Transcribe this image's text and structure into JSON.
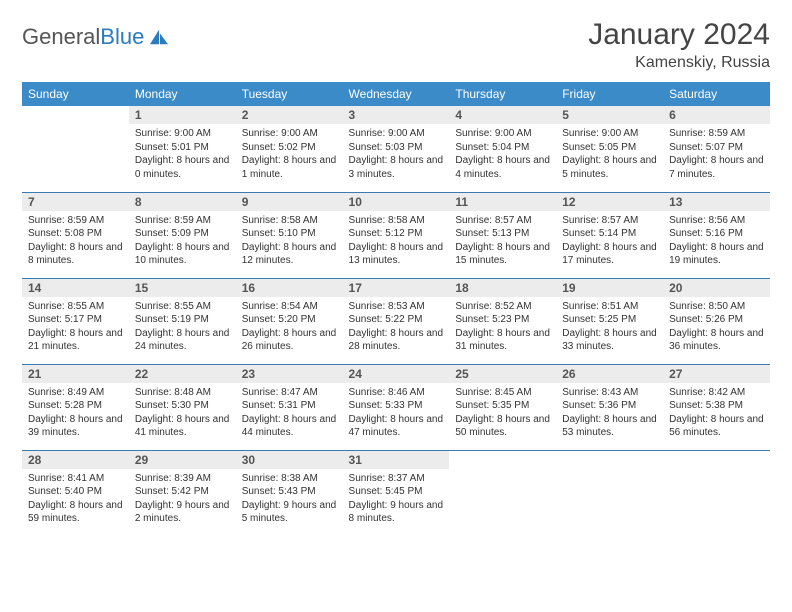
{
  "brand": {
    "part1": "General",
    "part2": "Blue"
  },
  "title": "January 2024",
  "location": "Kamenskiy, Russia",
  "colors": {
    "header_bg": "#3b8bc9",
    "header_text": "#ffffff",
    "daynum_bg": "#ececec",
    "rule": "#3b7bb5",
    "brand_blue": "#2b7bbf",
    "text": "#333333",
    "page_bg": "#ffffff"
  },
  "weekdays": [
    "Sunday",
    "Monday",
    "Tuesday",
    "Wednesday",
    "Thursday",
    "Friday",
    "Saturday"
  ],
  "weeks": [
    [
      null,
      {
        "n": "1",
        "sr": "9:00 AM",
        "ss": "5:01 PM",
        "dl": "8 hours and 0 minutes."
      },
      {
        "n": "2",
        "sr": "9:00 AM",
        "ss": "5:02 PM",
        "dl": "8 hours and 1 minute."
      },
      {
        "n": "3",
        "sr": "9:00 AM",
        "ss": "5:03 PM",
        "dl": "8 hours and 3 minutes."
      },
      {
        "n": "4",
        "sr": "9:00 AM",
        "ss": "5:04 PM",
        "dl": "8 hours and 4 minutes."
      },
      {
        "n": "5",
        "sr": "9:00 AM",
        "ss": "5:05 PM",
        "dl": "8 hours and 5 minutes."
      },
      {
        "n": "6",
        "sr": "8:59 AM",
        "ss": "5:07 PM",
        "dl": "8 hours and 7 minutes."
      }
    ],
    [
      {
        "n": "7",
        "sr": "8:59 AM",
        "ss": "5:08 PM",
        "dl": "8 hours and 8 minutes."
      },
      {
        "n": "8",
        "sr": "8:59 AM",
        "ss": "5:09 PM",
        "dl": "8 hours and 10 minutes."
      },
      {
        "n": "9",
        "sr": "8:58 AM",
        "ss": "5:10 PM",
        "dl": "8 hours and 12 minutes."
      },
      {
        "n": "10",
        "sr": "8:58 AM",
        "ss": "5:12 PM",
        "dl": "8 hours and 13 minutes."
      },
      {
        "n": "11",
        "sr": "8:57 AM",
        "ss": "5:13 PM",
        "dl": "8 hours and 15 minutes."
      },
      {
        "n": "12",
        "sr": "8:57 AM",
        "ss": "5:14 PM",
        "dl": "8 hours and 17 minutes."
      },
      {
        "n": "13",
        "sr": "8:56 AM",
        "ss": "5:16 PM",
        "dl": "8 hours and 19 minutes."
      }
    ],
    [
      {
        "n": "14",
        "sr": "8:55 AM",
        "ss": "5:17 PM",
        "dl": "8 hours and 21 minutes."
      },
      {
        "n": "15",
        "sr": "8:55 AM",
        "ss": "5:19 PM",
        "dl": "8 hours and 24 minutes."
      },
      {
        "n": "16",
        "sr": "8:54 AM",
        "ss": "5:20 PM",
        "dl": "8 hours and 26 minutes."
      },
      {
        "n": "17",
        "sr": "8:53 AM",
        "ss": "5:22 PM",
        "dl": "8 hours and 28 minutes."
      },
      {
        "n": "18",
        "sr": "8:52 AM",
        "ss": "5:23 PM",
        "dl": "8 hours and 31 minutes."
      },
      {
        "n": "19",
        "sr": "8:51 AM",
        "ss": "5:25 PM",
        "dl": "8 hours and 33 minutes."
      },
      {
        "n": "20",
        "sr": "8:50 AM",
        "ss": "5:26 PM",
        "dl": "8 hours and 36 minutes."
      }
    ],
    [
      {
        "n": "21",
        "sr": "8:49 AM",
        "ss": "5:28 PM",
        "dl": "8 hours and 39 minutes."
      },
      {
        "n": "22",
        "sr": "8:48 AM",
        "ss": "5:30 PM",
        "dl": "8 hours and 41 minutes."
      },
      {
        "n": "23",
        "sr": "8:47 AM",
        "ss": "5:31 PM",
        "dl": "8 hours and 44 minutes."
      },
      {
        "n": "24",
        "sr": "8:46 AM",
        "ss": "5:33 PM",
        "dl": "8 hours and 47 minutes."
      },
      {
        "n": "25",
        "sr": "8:45 AM",
        "ss": "5:35 PM",
        "dl": "8 hours and 50 minutes."
      },
      {
        "n": "26",
        "sr": "8:43 AM",
        "ss": "5:36 PM",
        "dl": "8 hours and 53 minutes."
      },
      {
        "n": "27",
        "sr": "8:42 AM",
        "ss": "5:38 PM",
        "dl": "8 hours and 56 minutes."
      }
    ],
    [
      {
        "n": "28",
        "sr": "8:41 AM",
        "ss": "5:40 PM",
        "dl": "8 hours and 59 minutes."
      },
      {
        "n": "29",
        "sr": "8:39 AM",
        "ss": "5:42 PM",
        "dl": "9 hours and 2 minutes."
      },
      {
        "n": "30",
        "sr": "8:38 AM",
        "ss": "5:43 PM",
        "dl": "9 hours and 5 minutes."
      },
      {
        "n": "31",
        "sr": "8:37 AM",
        "ss": "5:45 PM",
        "dl": "9 hours and 8 minutes."
      },
      null,
      null,
      null
    ]
  ],
  "labels": {
    "sunrise": "Sunrise:",
    "sunset": "Sunset:",
    "daylight": "Daylight:"
  }
}
